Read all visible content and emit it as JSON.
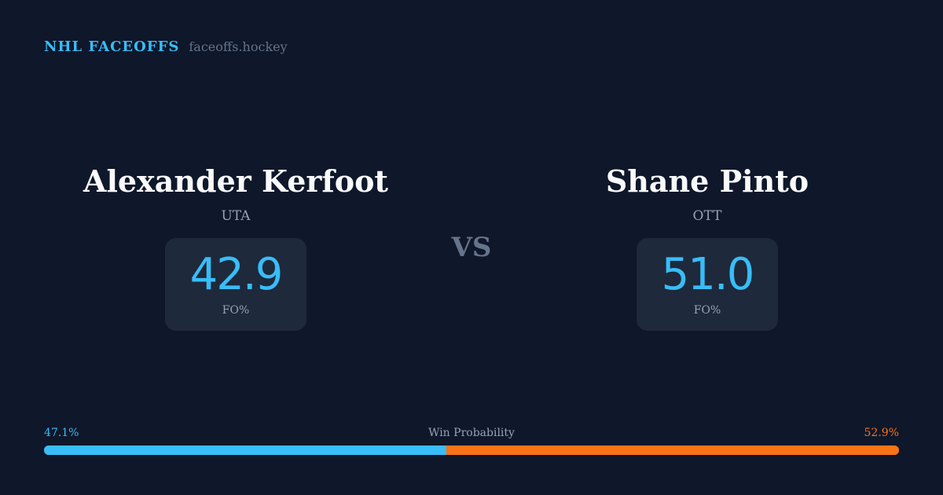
{
  "brand": {
    "title": "NHL FACEOFFS",
    "site": "faceoffs.hockey"
  },
  "players": [
    {
      "name": "Alexander Kerfoot",
      "team": "UTA",
      "value": "42.9",
      "label": "FO%"
    },
    {
      "name": "Shane Pinto",
      "team": "OTT",
      "value": "51.0",
      "label": "FO%"
    }
  ],
  "vs": "VS",
  "probability": {
    "title": "Win Probability",
    "left": "47.1%",
    "right": "52.9%",
    "left_fraction": 0.471
  },
  "colors": {
    "background": "#0f172a",
    "card": "#1e293b",
    "left_accent": "#38bdf8",
    "right_accent": "#f97316"
  }
}
